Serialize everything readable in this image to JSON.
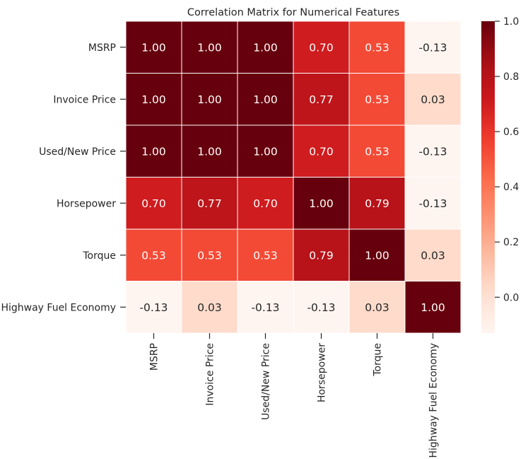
{
  "chart_data": {
    "type": "heatmap",
    "title": "Correlation Matrix for Numerical Features",
    "x_labels": [
      "MSRP",
      "Invoice Price",
      "Used/New Price",
      "Horsepower",
      "Torque",
      "Highway Fuel Economy"
    ],
    "y_labels": [
      "MSRP",
      "Invoice Price",
      "Used/New Price",
      "Horsepower",
      "Torque",
      "Highway Fuel Economy"
    ],
    "values": [
      [
        1.0,
        1.0,
        1.0,
        0.7,
        0.53,
        -0.13
      ],
      [
        1.0,
        1.0,
        1.0,
        0.77,
        0.53,
        0.03
      ],
      [
        1.0,
        1.0,
        1.0,
        0.7,
        0.53,
        -0.13
      ],
      [
        0.7,
        0.77,
        0.7,
        1.0,
        0.79,
        -0.13
      ],
      [
        0.53,
        0.53,
        0.53,
        0.79,
        1.0,
        0.03
      ],
      [
        -0.13,
        0.03,
        -0.13,
        -0.13,
        0.03,
        1.0
      ]
    ],
    "value_format": "0.00",
    "colormap": "Reds",
    "vmin": -0.13,
    "vmax": 1.0,
    "colorbar": {
      "ticks": [
        1.0,
        0.8,
        0.6,
        0.4,
        0.2,
        0.0
      ],
      "tick_labels": [
        "1.0",
        "0.8",
        "0.6",
        "0.4",
        "0.2",
        "0.0"
      ],
      "placement": "right"
    },
    "cell_border_color": "#ffffff",
    "annotation_light_color": "#ffffff",
    "annotation_dark_color": "#262626"
  }
}
